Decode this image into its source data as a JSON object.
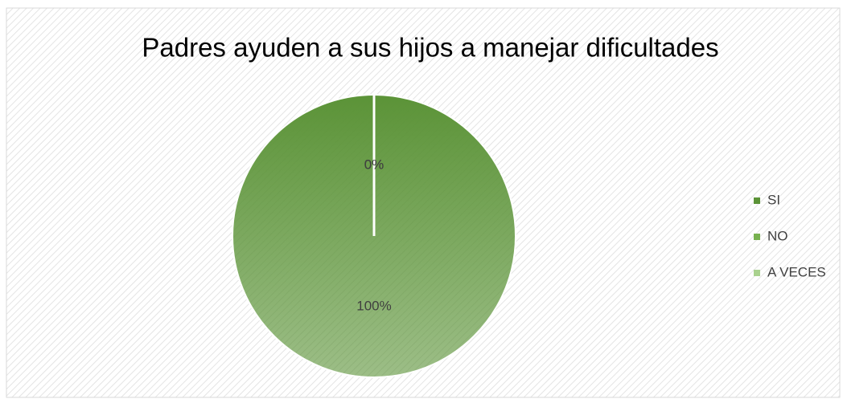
{
  "chart_data": {
    "type": "pie",
    "title": "Padres ayuden a sus hijos a manejar dificultades",
    "categories": [
      "SI",
      "NO",
      "A VECES"
    ],
    "values": [
      100,
      0,
      0
    ],
    "value_labels": [
      "100%",
      "0%",
      "0%"
    ],
    "colors": [
      "#5b9337",
      "#76b04e",
      "#a9d18e"
    ],
    "legend": "right"
  }
}
